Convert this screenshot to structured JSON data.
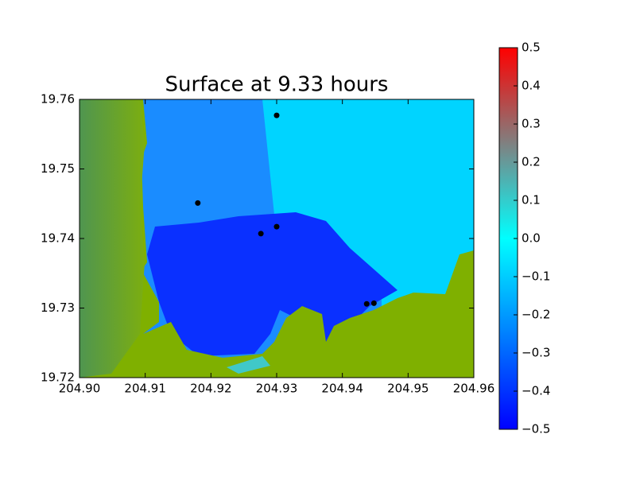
{
  "chart_data": {
    "type": "scatter",
    "title": "Surface at 9.33 hours",
    "x": [
      204.93,
      204.918,
      204.9276,
      204.93,
      204.9437,
      204.9448
    ],
    "values": [
      19.7577,
      19.7451,
      19.7407,
      19.7417,
      19.7306,
      19.7307
    ],
    "color": "#000000",
    "xlim": [
      204.9,
      204.96
    ],
    "xticks": [
      {
        "value": 204.9,
        "label": "204.90"
      },
      204.91,
      204.92,
      204.93,
      204.94,
      204.95,
      204.96
    ],
    "ylim": [
      19.72,
      19.76
    ],
    "yticks": [
      19.72,
      19.73,
      19.74,
      19.75,
      19.76
    ],
    "colorbar": {
      "lim": [
        -0.5,
        0.5
      ],
      "colors": [
        "#0000ff",
        "#0080ff",
        "#00ffff",
        "#808080",
        "#ff0000"
      ],
      "ticks": [
        {
          "value": -0.5,
          "label": "−0.5"
        },
        {
          "value": -0.4,
          "label": "−0.4"
        },
        {
          "value": -0.3,
          "label": "−0.3"
        },
        {
          "value": -0.2,
          "label": "−0.2"
        },
        {
          "value": -0.1,
          "label": "−0.1"
        },
        {
          "value": 0,
          "label": "0.0"
        },
        0.1,
        0.2,
        0.3,
        0.4,
        0.5
      ]
    }
  }
}
